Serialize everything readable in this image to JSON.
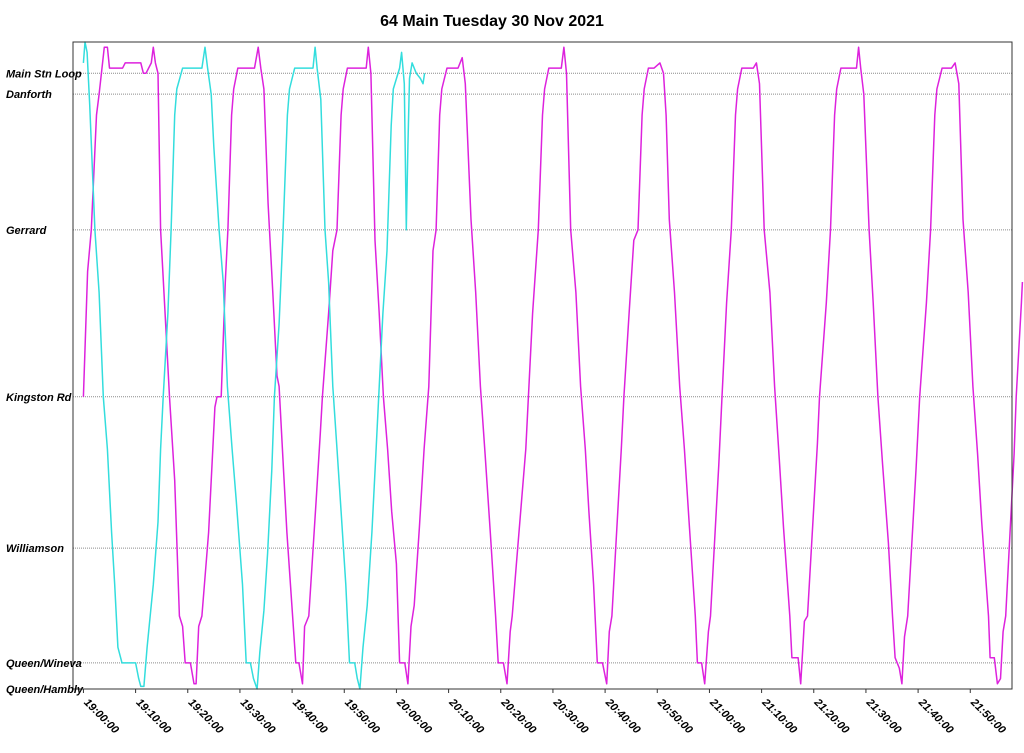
{
  "chart_data": {
    "type": "line",
    "title": "64 Main Tuesday 30 Nov 2021",
    "xlabel": "",
    "ylabel": "",
    "x_range": [
      "18:58:00",
      "21:58:00"
    ],
    "x_ticks": [
      "19:00:00",
      "19:10:00",
      "19:20:00",
      "19:30:00",
      "19:40:00",
      "19:50:00",
      "20:00:00",
      "20:10:00",
      "20:20:00",
      "20:30:00",
      "20:40:00",
      "20:50:00",
      "21:00:00",
      "21:10:00",
      "21:20:00",
      "21:30:00",
      "21:40:00",
      "21:50:00"
    ],
    "y_stops": [
      {
        "name": "Main Stn Loop",
        "level": 100
      },
      {
        "name": "Danforth",
        "level": 96
      },
      {
        "name": "Gerrard",
        "level": 70
      },
      {
        "name": "Kingston Rd",
        "level": 38
      },
      {
        "name": "Williamson",
        "level": 9
      },
      {
        "name": "Queen/Wineva",
        "level": -13
      },
      {
        "name": "Queen/Hambly",
        "level": -18
      }
    ],
    "ylim": [
      -18,
      106
    ],
    "grid": true,
    "series": [
      {
        "color": "#dd22dd",
        "points": [
          [
            0,
            38
          ],
          [
            0.8,
            62
          ],
          [
            1.5,
            70
          ],
          [
            2.5,
            92
          ],
          [
            3,
            96
          ],
          [
            4,
            105
          ],
          [
            4.6,
            105
          ],
          [
            5,
            101
          ],
          [
            7.5,
            101
          ],
          [
            8,
            102
          ],
          [
            11,
            102
          ],
          [
            11.5,
            100
          ],
          [
            12,
            100
          ],
          [
            13,
            102
          ],
          [
            13.4,
            105
          ],
          [
            13.8,
            102
          ],
          [
            14.3,
            100
          ],
          [
            14.8,
            70
          ],
          [
            15.6,
            55
          ],
          [
            16.5,
            38
          ],
          [
            17.5,
            22
          ],
          [
            18.4,
            -4
          ],
          [
            19,
            -6
          ],
          [
            19.5,
            -13
          ],
          [
            20.5,
            -13
          ],
          [
            21.2,
            -17
          ],
          [
            21.6,
            -17
          ],
          [
            22.1,
            -6
          ],
          [
            22.7,
            -4
          ],
          [
            24,
            12
          ],
          [
            24.8,
            28
          ],
          [
            25.2,
            36
          ],
          [
            25.6,
            38
          ],
          [
            26.4,
            38
          ],
          [
            27.2,
            60
          ],
          [
            27.7,
            70
          ],
          [
            28.4,
            92
          ],
          [
            28.8,
            97
          ],
          [
            29.6,
            101
          ],
          [
            31.5,
            101
          ],
          [
            32.8,
            101
          ],
          [
            33.5,
            105
          ],
          [
            34,
            101
          ],
          [
            34.6,
            97
          ],
          [
            35.4,
            75
          ],
          [
            36.3,
            58
          ],
          [
            37.1,
            42
          ],
          [
            37.5,
            40
          ],
          [
            38.4,
            23
          ],
          [
            39,
            12
          ],
          [
            40.7,
            -13
          ],
          [
            41.3,
            -13
          ],
          [
            42,
            -17
          ],
          [
            42.4,
            -6
          ],
          [
            43.2,
            -4
          ],
          [
            44.6,
            18
          ],
          [
            45.4,
            31
          ],
          [
            45.8,
            38
          ],
          [
            47,
            54
          ],
          [
            47.8,
            66
          ],
          [
            48.6,
            70
          ],
          [
            49.4,
            92
          ],
          [
            49.8,
            97
          ],
          [
            50.6,
            101
          ],
          [
            54.2,
            101
          ],
          [
            54.6,
            105
          ],
          [
            55.1,
            100
          ],
          [
            55.9,
            68
          ],
          [
            56.7,
            54
          ],
          [
            57.5,
            38
          ],
          [
            58.3,
            28
          ],
          [
            59.1,
            16
          ],
          [
            60,
            6
          ],
          [
            60.6,
            -13
          ],
          [
            61.6,
            -13
          ],
          [
            62.2,
            -17
          ],
          [
            62.8,
            -6
          ],
          [
            63.4,
            -2
          ],
          [
            64.4,
            13
          ],
          [
            65.3,
            28
          ],
          [
            66.2,
            40
          ],
          [
            67,
            66
          ],
          [
            67.6,
            70
          ],
          [
            68.3,
            92
          ],
          [
            68.7,
            97
          ],
          [
            69.7,
            101
          ],
          [
            70.8,
            101
          ],
          [
            71.8,
            101
          ],
          [
            72.6,
            103
          ],
          [
            73.2,
            98
          ],
          [
            74.3,
            72
          ],
          [
            75.2,
            58
          ],
          [
            76.1,
            40
          ],
          [
            77,
            27
          ],
          [
            78,
            12
          ],
          [
            79,
            -4
          ],
          [
            79.5,
            -13
          ],
          [
            80.5,
            -13
          ],
          [
            81.2,
            -17
          ],
          [
            81.8,
            -7
          ],
          [
            82.2,
            -4
          ],
          [
            83,
            6
          ],
          [
            84.8,
            28
          ],
          [
            85.3,
            38
          ],
          [
            86.1,
            54
          ],
          [
            87.2,
            70
          ],
          [
            88,
            92
          ],
          [
            88.4,
            97
          ],
          [
            89.2,
            101
          ],
          [
            91.6,
            101
          ],
          [
            92.1,
            105
          ],
          [
            92.6,
            100
          ],
          [
            93.4,
            70
          ],
          [
            94.4,
            58
          ],
          [
            95.3,
            40
          ],
          [
            96.2,
            28
          ],
          [
            96.9,
            16
          ],
          [
            97.8,
            2
          ],
          [
            98.5,
            -13
          ],
          [
            99.5,
            -13
          ],
          [
            100.3,
            -17
          ],
          [
            100.8,
            -7
          ],
          [
            101.3,
            -4
          ],
          [
            103.1,
            28
          ],
          [
            103.6,
            38
          ],
          [
            104.6,
            54
          ],
          [
            105.5,
            68
          ],
          [
            106.3,
            70
          ],
          [
            107.1,
            92
          ],
          [
            107.5,
            97
          ],
          [
            108.3,
            101
          ],
          [
            109.4,
            101
          ],
          [
            110.5,
            102
          ],
          [
            111.2,
            100
          ],
          [
            111.7,
            92
          ],
          [
            112.3,
            72
          ],
          [
            113.3,
            58
          ],
          [
            114.3,
            40
          ],
          [
            115.2,
            28
          ],
          [
            116.1,
            14
          ],
          [
            117.3,
            -4
          ],
          [
            117.7,
            -13
          ],
          [
            118.5,
            -13
          ],
          [
            119.1,
            -17
          ],
          [
            119.8,
            -7
          ],
          [
            120.2,
            -4
          ],
          [
            121.8,
            25
          ],
          [
            122.4,
            38
          ],
          [
            123.3,
            56
          ],
          [
            124.2,
            70
          ],
          [
            125,
            92
          ],
          [
            125.4,
            97
          ],
          [
            126.2,
            101
          ],
          [
            128.4,
            101
          ],
          [
            129,
            102
          ],
          [
            129.6,
            98
          ],
          [
            130.5,
            70
          ],
          [
            131.6,
            58
          ],
          [
            132.5,
            40
          ],
          [
            133.4,
            26
          ],
          [
            134.2,
            13
          ],
          [
            135.4,
            -4
          ],
          [
            135.8,
            -12
          ],
          [
            137,
            -12
          ],
          [
            137.5,
            -17
          ],
          [
            138.2,
            -5
          ],
          [
            138.8,
            -4
          ],
          [
            140.7,
            29
          ],
          [
            141.1,
            38
          ],
          [
            142.4,
            56
          ],
          [
            143.2,
            70
          ],
          [
            144,
            92
          ],
          [
            144.4,
            97
          ],
          [
            145.2,
            101
          ],
          [
            148.2,
            101
          ],
          [
            148.6,
            105
          ],
          [
            149,
            101
          ],
          [
            149.6,
            96
          ],
          [
            150.6,
            70
          ],
          [
            151.4,
            56
          ],
          [
            152.3,
            38
          ],
          [
            153.2,
            25
          ],
          [
            154.3,
            10
          ],
          [
            155.1,
            -4
          ],
          [
            155.6,
            -12
          ],
          [
            156.4,
            -14
          ],
          [
            156.9,
            -17
          ],
          [
            157.4,
            -8
          ],
          [
            158,
            -4
          ],
          [
            159.6,
            24
          ],
          [
            160.3,
            38
          ],
          [
            161.6,
            56
          ],
          [
            162.4,
            70
          ],
          [
            163.2,
            92
          ],
          [
            163.6,
            97
          ],
          [
            164.6,
            101
          ],
          [
            166.4,
            101
          ],
          [
            167.1,
            102
          ],
          [
            167.8,
            98
          ],
          [
            168.6,
            72
          ],
          [
            169.6,
            58
          ],
          [
            170.5,
            40
          ],
          [
            171.4,
            27
          ],
          [
            172.2,
            14
          ],
          [
            173.5,
            -4
          ],
          [
            173.8,
            -12
          ],
          [
            174.6,
            -12
          ],
          [
            175.2,
            -17
          ],
          [
            175.8,
            -16
          ],
          [
            176.3,
            -7
          ],
          [
            176.8,
            -4
          ],
          [
            178.4,
            27
          ],
          [
            178.8,
            38
          ],
          [
            179.8,
            56
          ],
          [
            180,
            60
          ]
        ]
      },
      {
        "color": "#33dddd",
        "points": [
          [
            0,
            102
          ],
          [
            0.3,
            106
          ],
          [
            0.7,
            104
          ],
          [
            1.2,
            94
          ],
          [
            2.2,
            70
          ],
          [
            3,
            58
          ],
          [
            3.8,
            38
          ],
          [
            4.6,
            28
          ],
          [
            5.4,
            12
          ],
          [
            6,
            2
          ],
          [
            6.6,
            -10
          ],
          [
            7.4,
            -13
          ],
          [
            10,
            -13
          ],
          [
            10.6,
            -16
          ],
          [
            11,
            -17.5
          ],
          [
            11.6,
            -17.5
          ],
          [
            12.2,
            -10
          ],
          [
            12.9,
            -3
          ],
          [
            13.4,
            2
          ],
          [
            14.3,
            14
          ],
          [
            14.8,
            28
          ],
          [
            15.3,
            38
          ],
          [
            16.2,
            54
          ],
          [
            16.8,
            70
          ],
          [
            17.5,
            92
          ],
          [
            17.9,
            97
          ],
          [
            19,
            101
          ],
          [
            22.7,
            101
          ],
          [
            23.3,
            105
          ],
          [
            23.8,
            101
          ],
          [
            24.5,
            96
          ],
          [
            25,
            86
          ],
          [
            26,
            70
          ],
          [
            26.8,
            60
          ],
          [
            27.6,
            40
          ],
          [
            28.5,
            28
          ],
          [
            29.3,
            18
          ],
          [
            30.5,
            2
          ],
          [
            31.2,
            -13
          ],
          [
            32,
            -13
          ],
          [
            32.6,
            -16
          ],
          [
            33.3,
            -18
          ],
          [
            33.8,
            -11
          ],
          [
            34.6,
            -3
          ],
          [
            35.3,
            8
          ],
          [
            36.1,
            24
          ],
          [
            36.6,
            38
          ],
          [
            37.5,
            52
          ],
          [
            38.2,
            68
          ],
          [
            39.1,
            92
          ],
          [
            39.5,
            97
          ],
          [
            40.5,
            101
          ],
          [
            44,
            101
          ],
          [
            44.4,
            105
          ],
          [
            44.8,
            101
          ],
          [
            45.5,
            95
          ],
          [
            46.3,
            70
          ],
          [
            47,
            60
          ],
          [
            47.8,
            40
          ],
          [
            48.6,
            28
          ],
          [
            49.4,
            16
          ],
          [
            50.3,
            2
          ],
          [
            51,
            -13
          ],
          [
            52,
            -13
          ],
          [
            52.5,
            -16
          ],
          [
            53,
            -18
          ],
          [
            53.6,
            -10
          ],
          [
            54.4,
            -2
          ],
          [
            55.3,
            12
          ],
          [
            56,
            26
          ],
          [
            56.6,
            38
          ],
          [
            57.4,
            54
          ],
          [
            58.2,
            66
          ],
          [
            59,
            90
          ],
          [
            59.4,
            97
          ],
          [
            60.6,
            101
          ],
          [
            61,
            104
          ],
          [
            61.5,
            98
          ],
          [
            61.9,
            70
          ],
          [
            62.2,
            86
          ],
          [
            62.5,
            99
          ],
          [
            63,
            102
          ],
          [
            63.8,
            100
          ],
          [
            64.6,
            99
          ],
          [
            65.1,
            98
          ],
          [
            65.4,
            100
          ]
        ]
      }
    ]
  }
}
